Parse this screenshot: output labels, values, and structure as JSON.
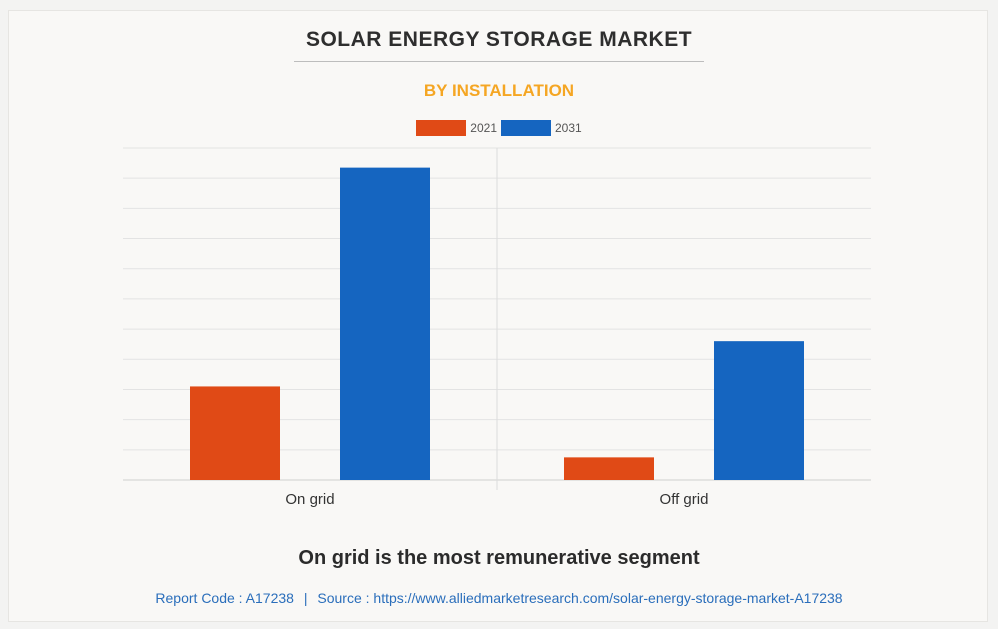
{
  "header": {
    "title": "SOLAR ENERGY STORAGE MARKET",
    "subtitle": "BY INSTALLATION"
  },
  "caption": "On grid is the most remunerative segment",
  "footer": {
    "report_code": "Report Code : A17238",
    "separator": "|",
    "source": "Source : https://www.alliedmarketresearch.com/solar-energy-storage-market-A17238"
  },
  "colors": {
    "2021": "#e04a16",
    "2031": "#1565c0",
    "subtitle": "#f5a623",
    "footer_link": "#2a6ebb"
  },
  "chart_data": {
    "type": "bar",
    "title": "SOLAR ENERGY STORAGE MARKET",
    "subtitle": "BY INSTALLATION",
    "categories": [
      "On grid",
      "Off grid"
    ],
    "series": [
      {
        "name": "2021",
        "values": [
          3.1,
          0.75
        ]
      },
      {
        "name": "2031",
        "values": [
          10.35,
          4.6
        ]
      }
    ],
    "ylim": [
      0,
      11
    ],
    "y_gridlines": 11,
    "grid": true,
    "legend": "top-center",
    "y_axis_labels_shown": false
  }
}
